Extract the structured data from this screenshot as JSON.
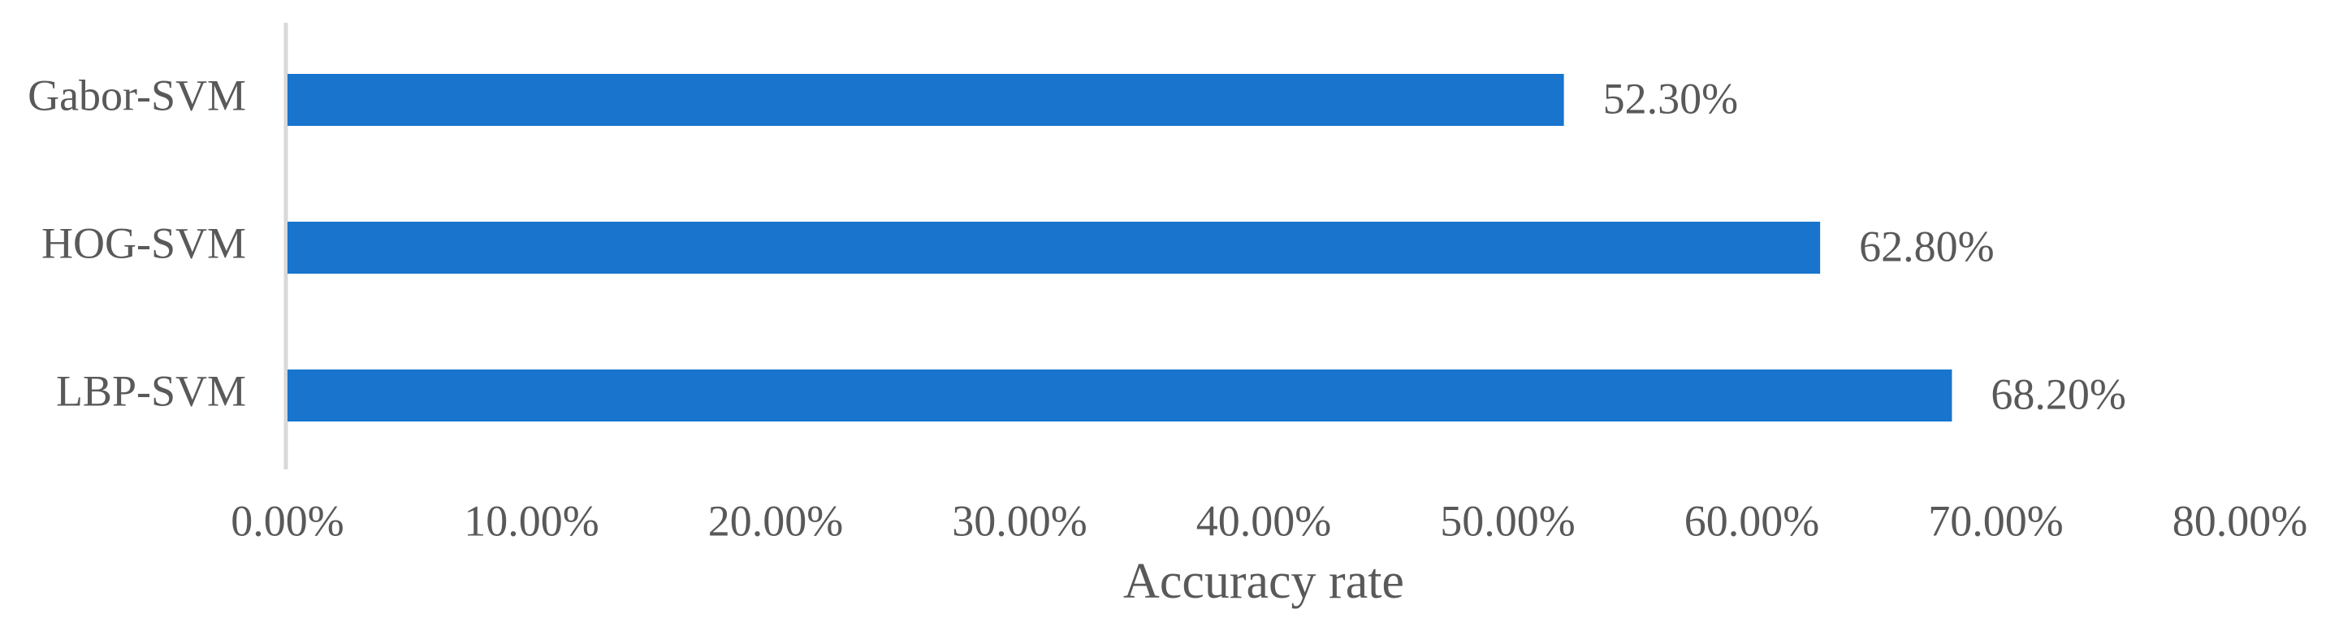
{
  "chart_data": {
    "type": "barh",
    "categories": [
      "Gabor-SVM",
      "HOG-SVM",
      "LBP-SVM"
    ],
    "values": [
      52.3,
      62.8,
      68.2
    ],
    "value_labels": [
      "52.30%",
      "62.80%",
      "68.20%"
    ],
    "color": "#1874cd",
    "xlabel": "Accuracy rate",
    "xlim": [
      0,
      80
    ],
    "xticks": [
      {
        "value": 0,
        "label": "0.00%"
      },
      {
        "value": 10,
        "label": "10.00%"
      },
      {
        "value": 20,
        "label": "20.00%"
      },
      {
        "value": 30,
        "label": "30.00%"
      },
      {
        "value": 40,
        "label": "40.00%"
      },
      {
        "value": 50,
        "label": "50.00%"
      },
      {
        "value": 60,
        "label": "60.00%"
      },
      {
        "value": 70,
        "label": "70.00%"
      },
      {
        "value": 80,
        "label": "80.00%"
      }
    ],
    "grid": false
  }
}
